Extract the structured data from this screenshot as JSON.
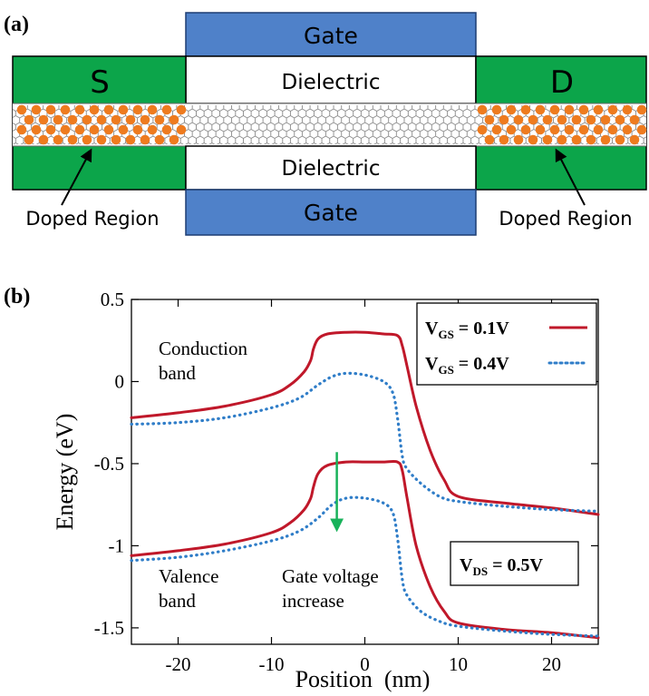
{
  "panel_a": {
    "label": "(a)",
    "gate_top": "Gate",
    "gate_bottom": "Gate",
    "dielectric_top": "Dielectric",
    "dielectric_bottom": "Dielectric",
    "source": "S",
    "drain": "D",
    "doped_left": "Doped  Region",
    "doped_right": "Doped  Region",
    "colors": {
      "gate": "#4f81c9",
      "contact": "#0ca54a",
      "doped": "#ee7b1f",
      "lattice": "#8a8a8a"
    }
  },
  "panel_b": {
    "label": "(b)",
    "annotations": {
      "conduction_1": "Conduction",
      "conduction_2": "band",
      "valence_1": "Valence",
      "valence_2": "band",
      "gate_1": "Gate voltage",
      "gate_2": "increase"
    },
    "legend": {
      "v1_main": "V",
      "v1_sub": "GS",
      "v1_val": " = 0.1V",
      "v2_main": "V",
      "v2_sub": "GS",
      "v2_val": " = 0.4V"
    },
    "vds": {
      "main": "V",
      "sub": "DS",
      "val": " = 0.5V"
    }
  },
  "chart_data": {
    "type": "line",
    "xlabel": "Position  (nm)",
    "ylabel": "Energy (eV)",
    "xlim": [
      -25,
      25
    ],
    "ylim": [
      -1.6,
      0.5
    ],
    "xticks": [
      -20,
      -10,
      0,
      10,
      20
    ],
    "xtick_labels": [
      "-20",
      "-10",
      "0",
      "10",
      "20"
    ],
    "yticks": [
      0.5,
      0,
      -0.5,
      -1,
      -1.5
    ],
    "ytick_labels": [
      "0.5",
      "0",
      "-0.5",
      "-1",
      "-1.5"
    ],
    "series": [
      {
        "name": "VGS = 0.1V conduction",
        "color": "#c0182a",
        "style": "solid",
        "x": [
          -25,
          -20,
          -15,
          -10,
          -8,
          -6.5,
          -5.8,
          -5.5,
          -5,
          -4,
          -2,
          0,
          2,
          3.5,
          4,
          4.5,
          5.5,
          7,
          8.5,
          10,
          15,
          20,
          25
        ],
        "y": [
          -0.22,
          -0.19,
          -0.15,
          -0.08,
          -0.02,
          0.06,
          0.13,
          0.2,
          0.26,
          0.29,
          0.3,
          0.3,
          0.29,
          0.28,
          0.22,
          0.1,
          -0.15,
          -0.42,
          -0.6,
          -0.7,
          -0.74,
          -0.77,
          -0.81
        ]
      },
      {
        "name": "VGS = 0.4V conduction",
        "color": "#2f7dc8",
        "style": "dotted",
        "x": [
          -25,
          -20,
          -15,
          -10,
          -7,
          -5,
          -3.5,
          -2,
          0,
          2,
          3,
          3.5,
          4,
          4.5,
          6,
          8,
          10,
          15,
          20,
          25
        ],
        "y": [
          -0.26,
          -0.25,
          -0.22,
          -0.16,
          -0.1,
          -0.02,
          0.03,
          0.05,
          0.04,
          0.0,
          -0.07,
          -0.22,
          -0.45,
          -0.53,
          -0.62,
          -0.7,
          -0.73,
          -0.76,
          -0.78,
          -0.79
        ]
      },
      {
        "name": "VGS = 0.1V valence",
        "color": "#c0182a",
        "style": "solid",
        "x": [
          -25,
          -20,
          -15,
          -10,
          -8,
          -6.5,
          -5.8,
          -5.5,
          -5,
          -4,
          -2,
          0,
          2,
          3.5,
          4,
          4.5,
          5.5,
          7,
          8.5,
          10,
          15,
          20,
          25
        ],
        "y": [
          -1.06,
          -1.03,
          -0.99,
          -0.92,
          -0.86,
          -0.78,
          -0.71,
          -0.64,
          -0.56,
          -0.51,
          -0.49,
          -0.49,
          -0.49,
          -0.49,
          -0.54,
          -0.7,
          -1.0,
          -1.25,
          -1.4,
          -1.47,
          -1.51,
          -1.53,
          -1.56
        ]
      },
      {
        "name": "VGS = 0.4V valence",
        "color": "#2f7dc8",
        "style": "dotted",
        "x": [
          -25,
          -20,
          -15,
          -10,
          -7,
          -5,
          -3.5,
          -2,
          0,
          2,
          3,
          3.5,
          4,
          4.5,
          6,
          8,
          10,
          15,
          20,
          25
        ],
        "y": [
          -1.09,
          -1.07,
          -1.03,
          -0.97,
          -0.91,
          -0.83,
          -0.75,
          -0.71,
          -0.71,
          -0.74,
          -0.8,
          -0.95,
          -1.2,
          -1.3,
          -1.4,
          -1.46,
          -1.49,
          -1.52,
          -1.54,
          -1.55
        ]
      }
    ],
    "arrow": {
      "x": -3,
      "y_from": -0.43,
      "y_to": -0.9,
      "color": "#18b25a"
    },
    "grid": false,
    "legend_position": "top-right"
  }
}
